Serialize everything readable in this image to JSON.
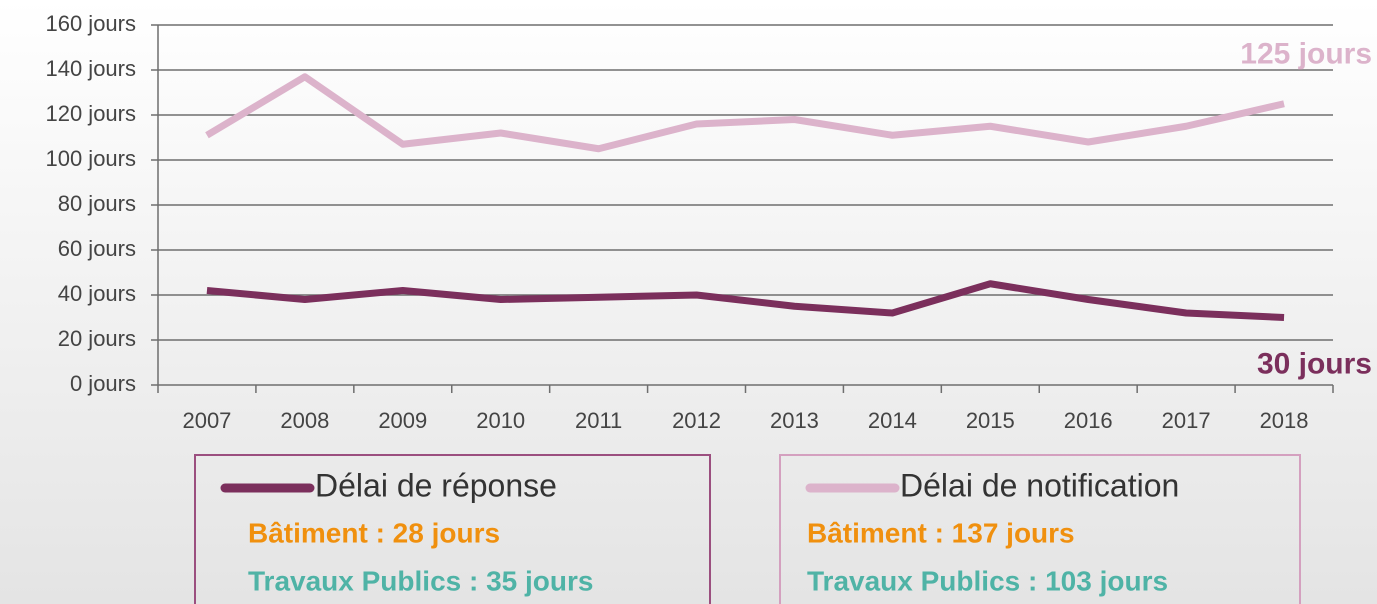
{
  "chart_data": {
    "type": "line",
    "categories": [
      "2007",
      "2008",
      "2009",
      "2010",
      "2011",
      "2012",
      "2013",
      "2014",
      "2015",
      "2016",
      "2017",
      "2018"
    ],
    "ylim": [
      0,
      160
    ],
    "yticks": [
      {
        "value": 0,
        "label": "0 jours"
      },
      {
        "value": 20,
        "label": "20 jours"
      },
      {
        "value": 40,
        "label": "40 jours"
      },
      {
        "value": 60,
        "label": "60 jours"
      },
      {
        "value": 80,
        "label": "80 jours"
      },
      {
        "value": 100,
        "label": "100 jours"
      },
      {
        "value": 120,
        "label": "120 jours"
      },
      {
        "value": 140,
        "label": "140 jours"
      },
      {
        "value": 160,
        "label": "160 jours"
      }
    ],
    "grid": true,
    "series": [
      {
        "name": "Délai de réponse",
        "color": "#7b2f5c",
        "values": [
          42,
          38,
          42,
          38,
          39,
          40,
          35,
          32,
          45,
          38,
          32,
          30
        ],
        "end_label": "30 jours",
        "notes": [
          "Bâtiment : 28 jours",
          "Travaux Publics : 35 jours"
        ]
      },
      {
        "name": "Délai de notification",
        "color": "#dcb3cb",
        "values": [
          111,
          137,
          107,
          112,
          105,
          116,
          118,
          111,
          115,
          108,
          115,
          125
        ],
        "end_label": "125 jours",
        "notes": [
          "Bâtiment : 137 jours",
          "Travaux Publics : 103 jours"
        ]
      }
    ]
  }
}
